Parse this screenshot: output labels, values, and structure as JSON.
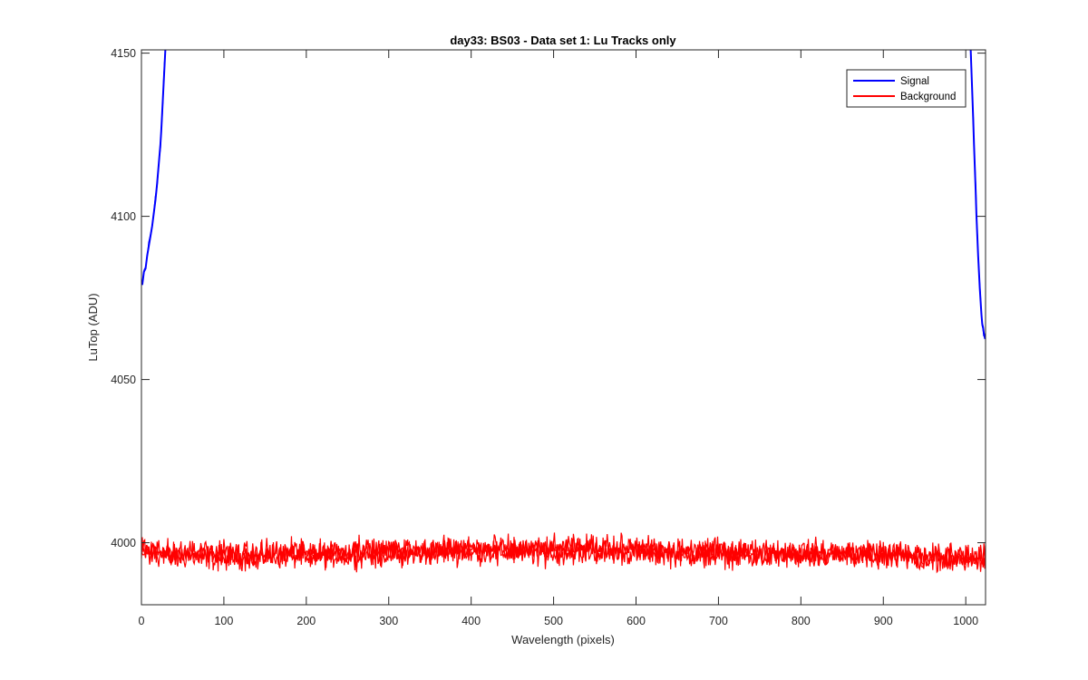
{
  "chart_data": {
    "type": "line",
    "title": "day33: BS03 - Data set 1: Lu Tracks only",
    "xlabel": "Wavelength (pixels)",
    "ylabel": "LuTop (ADU)",
    "xlim": [
      0,
      1024
    ],
    "ylim": [
      3981,
      4151
    ],
    "xticks": [
      0,
      100,
      200,
      300,
      400,
      500,
      600,
      700,
      800,
      900,
      1000
    ],
    "yticks": [
      4000,
      4050,
      4100,
      4150
    ],
    "grid": false,
    "legend_position": "top-right",
    "series": [
      {
        "name": "Signal",
        "color": "#0000ff",
        "segments": [
          {
            "x": [
              1,
              3,
              5,
              7,
              9,
              11,
              13,
              15,
              17,
              19,
              21,
              23,
              24,
              25,
              26,
              27,
              28,
              29
            ],
            "y": [
              4079,
              4083,
              4084,
              4088,
              4091,
              4094,
              4097,
              4101,
              4105,
              4110,
              4116,
              4122,
              4126,
              4131,
              4136,
              4141,
              4146,
              4151
            ]
          },
          {
            "x": [
              1006,
              1007,
              1008,
              1009,
              1010,
              1011,
              1012,
              1013,
              1014,
              1015,
              1016,
              1017,
              1018,
              1019,
              1020,
              1021,
              1022,
              1023,
              1024
            ],
            "y": [
              4151,
              4144,
              4137,
              4130,
              4122,
              4115,
              4108,
              4100,
              4094,
              4088,
              4083,
              4078,
              4074,
              4070,
              4067,
              4066,
              4064,
              4063,
              4063
            ]
          }
        ]
      },
      {
        "name": "Background",
        "color": "#ff0000",
        "baseline": {
          "x": [
            0,
            50,
            100,
            150,
            200,
            250,
            300,
            350,
            400,
            450,
            500,
            550,
            600,
            650,
            700,
            750,
            800,
            850,
            900,
            950,
            1000,
            1024
          ],
          "y": [
            3997,
            3996.5,
            3996,
            3996.5,
            3996.5,
            3997,
            3997,
            3997.5,
            3998,
            3997.5,
            3997.5,
            3998,
            3997.5,
            3997,
            3997,
            3996.5,
            3996.5,
            3996.5,
            3996,
            3995.5,
            3995.5,
            3995.5
          ]
        },
        "noise_amplitude": 3.5,
        "trace_count": 3
      }
    ]
  }
}
